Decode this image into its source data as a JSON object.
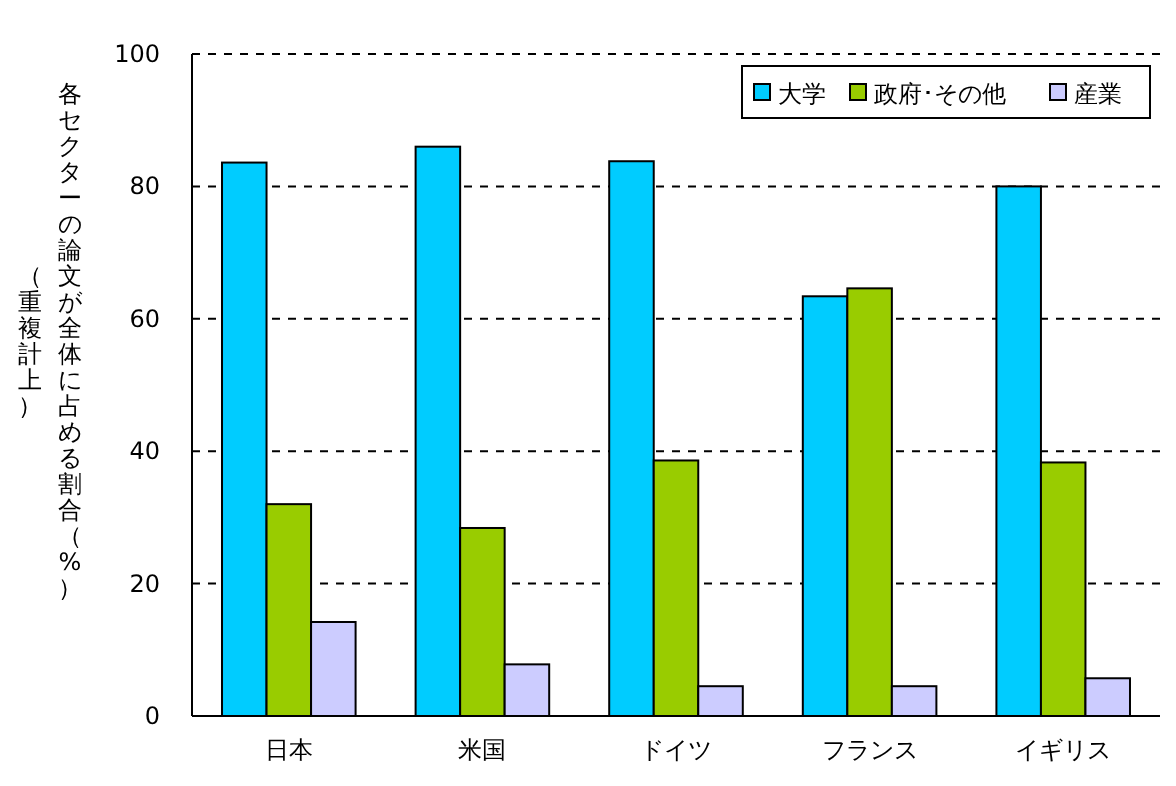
{
  "chart_data": {
    "type": "bar",
    "ylabel": [
      "各セクターの論文が全体に占める割合（%）",
      "（重複計上）"
    ],
    "categories": [
      "日本",
      "米国",
      "ドイツ",
      "フランス",
      "イギリス"
    ],
    "series": [
      {
        "name": "大学",
        "color": "#00ccff",
        "values": [
          83.6,
          86.0,
          83.8,
          63.4,
          80.0
        ]
      },
      {
        "name": "政府･その他",
        "color": "#99cc00",
        "values": [
          32.0,
          28.4,
          38.6,
          64.6,
          38.3
        ]
      },
      {
        "name": "産業",
        "color": "#ccccff",
        "values": [
          14.2,
          7.8,
          4.5,
          4.5,
          5.7
        ]
      }
    ],
    "ylim": [
      0,
      100
    ],
    "yticks": [
      0,
      20,
      40,
      60,
      80,
      100
    ],
    "grid": "y",
    "legend": "top right"
  }
}
